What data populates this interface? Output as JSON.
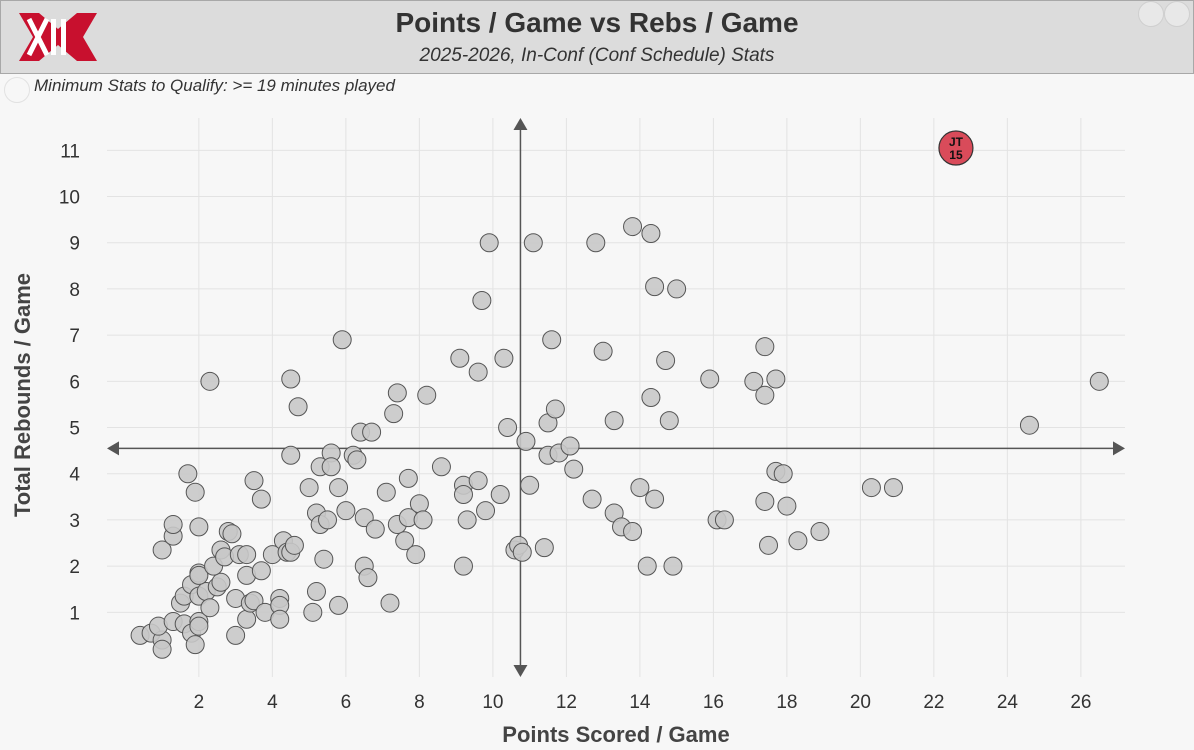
{
  "header": {
    "logo_icon": "big-xii-logo-icon",
    "logo_text": "XII",
    "title": "Points / Game vs Rebs / Game",
    "subtitle": "2025-2026, In-Conf (Conf Schedule) Stats"
  },
  "note": "Minimum Stats to Qualify: >= 19 minutes played",
  "colors": {
    "brand": "#c8102e",
    "point": "#c8c8c8",
    "highlight": "#d94b5a"
  },
  "chart_data": {
    "type": "scatter",
    "title": "Points / Game vs Rebs / Game",
    "subtitle": "2025-2026, In-Conf (Conf Schedule) Stats",
    "xlabel": "Points Scored / Game",
    "ylabel": "Total Rebounds / Game",
    "xlim": [
      -0.5,
      27.2
    ],
    "ylim": [
      -0.4,
      11.7
    ],
    "x_ticks": [
      2,
      4,
      6,
      8,
      10,
      12,
      14,
      16,
      18,
      20,
      22,
      24,
      26
    ],
    "y_ticks": [
      1,
      2,
      3,
      4,
      5,
      6,
      7,
      8,
      9,
      10,
      11
    ],
    "grid": true,
    "reference_lines": {
      "x_mean": 10.75,
      "y_mean": 4.55
    },
    "highlight": {
      "x": 22.6,
      "y": 11.05,
      "label_line1": "JT",
      "label_line2": "15"
    },
    "points": [
      [
        0.4,
        0.5
      ],
      [
        0.7,
        0.55
      ],
      [
        1.0,
        0.4
      ],
      [
        0.9,
        0.7
      ],
      [
        1.0,
        0.2
      ],
      [
        1.3,
        0.8
      ],
      [
        1.5,
        1.2
      ],
      [
        1.6,
        0.75
      ],
      [
        1.8,
        0.55
      ],
      [
        1.9,
        0.3
      ],
      [
        2.0,
        0.8
      ],
      [
        2.0,
        0.7
      ],
      [
        1.6,
        1.35
      ],
      [
        1.8,
        1.6
      ],
      [
        2.0,
        1.85
      ],
      [
        2.0,
        1.35
      ],
      [
        2.2,
        1.45
      ],
      [
        2.3,
        1.1
      ],
      [
        2.0,
        1.8
      ],
      [
        2.5,
        1.55
      ],
      [
        2.6,
        1.65
      ],
      [
        2.4,
        2.0
      ],
      [
        2.6,
        2.35
      ],
      [
        2.7,
        2.2
      ],
      [
        2.8,
        2.75
      ],
      [
        2.9,
        2.7
      ],
      [
        3.0,
        1.3
      ],
      [
        3.0,
        0.5
      ],
      [
        3.1,
        2.25
      ],
      [
        3.3,
        2.25
      ],
      [
        3.3,
        1.8
      ],
      [
        3.3,
        0.85
      ],
      [
        3.4,
        1.2
      ],
      [
        3.5,
        1.25
      ],
      [
        3.7,
        1.9
      ],
      [
        3.8,
        1.0
      ],
      [
        4.0,
        2.25
      ],
      [
        4.2,
        1.3
      ],
      [
        4.2,
        1.15
      ],
      [
        4.2,
        0.85
      ],
      [
        4.3,
        2.55
      ],
      [
        4.4,
        2.3
      ],
      [
        4.5,
        2.3
      ],
      [
        4.6,
        2.45
      ],
      [
        1.0,
        2.35
      ],
      [
        1.3,
        2.65
      ],
      [
        1.3,
        2.9
      ],
      [
        2.0,
        2.85
      ],
      [
        1.9,
        3.6
      ],
      [
        1.7,
        4.0
      ],
      [
        2.3,
        6.0
      ],
      [
        3.5,
        3.85
      ],
      [
        3.7,
        3.45
      ],
      [
        4.5,
        4.4
      ],
      [
        4.5,
        6.05
      ],
      [
        4.7,
        5.45
      ],
      [
        5.0,
        3.7
      ],
      [
        5.2,
        3.15
      ],
      [
        5.3,
        2.9
      ],
      [
        5.4,
        2.15
      ],
      [
        5.5,
        3.0
      ],
      [
        5.3,
        4.15
      ],
      [
        5.6,
        4.45
      ],
      [
        5.6,
        4.15
      ],
      [
        5.8,
        3.7
      ],
      [
        5.9,
        6.9
      ],
      [
        5.8,
        1.15
      ],
      [
        5.2,
        1.45
      ],
      [
        5.1,
        1.0
      ],
      [
        6.0,
        3.2
      ],
      [
        6.2,
        4.4
      ],
      [
        6.3,
        4.3
      ],
      [
        6.4,
        4.9
      ],
      [
        6.5,
        2.0
      ],
      [
        6.6,
        1.75
      ],
      [
        6.5,
        3.05
      ],
      [
        6.7,
        4.9
      ],
      [
        6.8,
        2.8
      ],
      [
        7.1,
        3.6
      ],
      [
        7.2,
        1.2
      ],
      [
        7.3,
        5.3
      ],
      [
        7.4,
        5.75
      ],
      [
        7.4,
        2.9
      ],
      [
        7.6,
        2.55
      ],
      [
        7.7,
        3.05
      ],
      [
        7.7,
        3.9
      ],
      [
        7.9,
        2.25
      ],
      [
        8.0,
        3.35
      ],
      [
        8.1,
        3.0
      ],
      [
        8.2,
        5.7
      ],
      [
        8.6,
        4.15
      ],
      [
        9.1,
        6.5
      ],
      [
        9.2,
        3.75
      ],
      [
        9.2,
        3.55
      ],
      [
        9.2,
        2.0
      ],
      [
        9.3,
        3.0
      ],
      [
        9.6,
        3.85
      ],
      [
        9.6,
        6.2
      ],
      [
        9.7,
        7.75
      ],
      [
        9.8,
        3.2
      ],
      [
        9.9,
        9.0
      ],
      [
        10.2,
        3.55
      ],
      [
        10.3,
        6.5
      ],
      [
        10.4,
        5.0
      ],
      [
        10.6,
        2.35
      ],
      [
        10.7,
        2.45
      ],
      [
        10.8,
        2.3
      ],
      [
        10.9,
        4.7
      ],
      [
        11.0,
        3.75
      ],
      [
        11.1,
        9.0
      ],
      [
        11.4,
        2.4
      ],
      [
        11.5,
        4.4
      ],
      [
        11.5,
        5.1
      ],
      [
        11.6,
        6.9
      ],
      [
        11.7,
        5.4
      ],
      [
        11.8,
        4.45
      ],
      [
        12.1,
        4.6
      ],
      [
        12.2,
        4.1
      ],
      [
        12.7,
        3.45
      ],
      [
        12.8,
        9.0
      ],
      [
        13.0,
        6.65
      ],
      [
        13.3,
        5.15
      ],
      [
        13.3,
        3.15
      ],
      [
        13.5,
        2.85
      ],
      [
        13.8,
        2.75
      ],
      [
        13.8,
        9.35
      ],
      [
        14.0,
        3.7
      ],
      [
        14.2,
        2.0
      ],
      [
        14.3,
        5.65
      ],
      [
        14.3,
        9.2
      ],
      [
        14.4,
        8.05
      ],
      [
        14.4,
        3.45
      ],
      [
        14.7,
        6.45
      ],
      [
        14.8,
        5.15
      ],
      [
        14.9,
        2.0
      ],
      [
        15.0,
        8.0
      ],
      [
        15.9,
        6.05
      ],
      [
        16.1,
        3.0
      ],
      [
        16.3,
        3.0
      ],
      [
        17.1,
        6.0
      ],
      [
        17.4,
        3.4
      ],
      [
        17.4,
        5.7
      ],
      [
        17.4,
        6.75
      ],
      [
        17.5,
        2.45
      ],
      [
        17.7,
        6.05
      ],
      [
        17.7,
        4.05
      ],
      [
        17.9,
        4.0
      ],
      [
        18.0,
        3.3
      ],
      [
        18.3,
        2.55
      ],
      [
        18.9,
        2.75
      ],
      [
        20.3,
        3.7
      ],
      [
        20.9,
        3.7
      ],
      [
        24.6,
        5.05
      ],
      [
        26.5,
        6.0
      ]
    ]
  }
}
